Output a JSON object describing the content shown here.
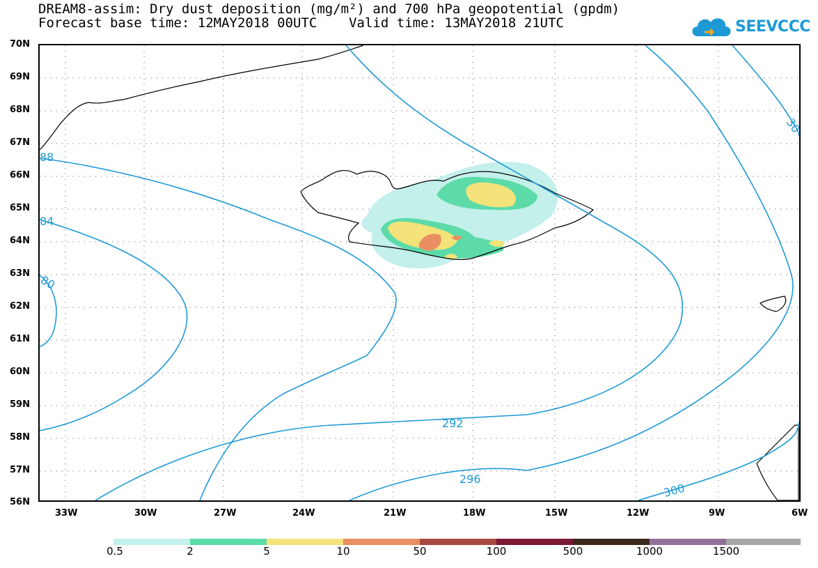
{
  "title": {
    "line1": "DREAM8-assim: Dry dust deposition (mg/m²) and 700 hPa geopotential (gpdm)",
    "line2": "Forecast base time: 12MAY2018 00UTC    Valid time: 13MAY2018 21UTC"
  },
  "logo": {
    "text": "SEEVCCC",
    "icon": "cloud-logo-icon",
    "color": "#1d9ad6"
  },
  "map": {
    "lat_labels": [
      "70N",
      "69N",
      "68N",
      "67N",
      "66N",
      "65N",
      "64N",
      "63N",
      "62N",
      "61N",
      "60N",
      "59N",
      "58N",
      "57N",
      "56N"
    ],
    "lon_labels": [
      "33W",
      "30W",
      "27W",
      "24W",
      "21W",
      "18W",
      "15W",
      "12W",
      "9W",
      "6W"
    ],
    "contour_color": "#1d9ad6",
    "contour_labels": [
      "88",
      "84",
      "80",
      "292",
      "296",
      "300",
      "30"
    ]
  },
  "legend": {
    "colors": [
      "#c3f0ea",
      "#5cdba9",
      "#f4e37a",
      "#e98f62",
      "#a8483f",
      "#7a1a34",
      "#3a2a1c",
      "#93709a",
      "#a6a6a6"
    ],
    "labels": [
      "0.5",
      "2",
      "5",
      "10",
      "50",
      "100",
      "500",
      "1000",
      "1500"
    ]
  }
}
